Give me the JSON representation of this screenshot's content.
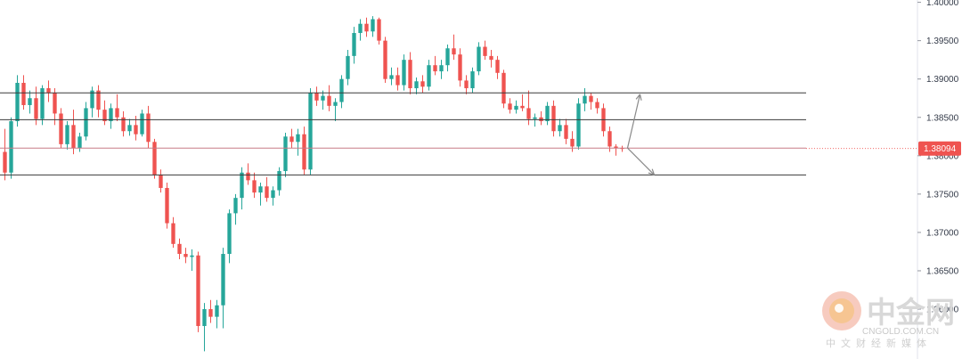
{
  "chart_data": {
    "type": "candlestick",
    "y_axis": {
      "ylim": [
        1.3535,
        1.4003
      ],
      "ticks": [
        "1.40000",
        "1.39500",
        "1.39000",
        "1.38500",
        "1.38000",
        "1.37500",
        "1.37000",
        "1.36500",
        "1.36000"
      ],
      "tick_values": [
        1.4,
        1.395,
        1.39,
        1.385,
        1.38,
        1.375,
        1.37,
        1.365,
        1.36
      ]
    },
    "current_price": {
      "label": "1.38094",
      "value": 1.38094,
      "color": "#ef5350"
    },
    "horizontal_levels": [
      1.3882,
      1.3847,
      1.381,
      1.3775
    ],
    "colors": {
      "up": "#26a69a",
      "down": "#ef5350",
      "level_line": "#3a3a3a",
      "arrow": "#8a8a8a"
    },
    "forecast_arrows": [
      {
        "from": 1.381,
        "to": 1.388
      },
      {
        "from": 1.381,
        "to": 1.3775
      }
    ],
    "candles": [
      [
        1.3805,
        1.3835,
        1.3768,
        1.3778
      ],
      [
        1.3778,
        1.385,
        1.377,
        1.3845
      ],
      [
        1.3845,
        1.3905,
        1.3838,
        1.3895
      ],
      [
        1.3895,
        1.3905,
        1.386,
        1.3866
      ],
      [
        1.3866,
        1.3885,
        1.3855,
        1.3875
      ],
      [
        1.3875,
        1.389,
        1.384,
        1.3848
      ],
      [
        1.3848,
        1.3892,
        1.384,
        1.3888
      ],
      [
        1.3888,
        1.3898,
        1.387,
        1.3882
      ],
      [
        1.3882,
        1.3888,
        1.384,
        1.3855
      ],
      [
        1.3855,
        1.3862,
        1.381,
        1.3815
      ],
      [
        1.3815,
        1.3845,
        1.3808,
        1.384
      ],
      [
        1.384,
        1.386,
        1.3802,
        1.381
      ],
      [
        1.381,
        1.383,
        1.3805,
        1.3825
      ],
      [
        1.3825,
        1.387,
        1.382,
        1.3862
      ],
      [
        1.3862,
        1.389,
        1.385,
        1.3885
      ],
      [
        1.3885,
        1.3892,
        1.385,
        1.386
      ],
      [
        1.386,
        1.3872,
        1.384,
        1.3845
      ],
      [
        1.3845,
        1.3868,
        1.3835,
        1.3862
      ],
      [
        1.3862,
        1.388,
        1.3845,
        1.385
      ],
      [
        1.385,
        1.3858,
        1.3825,
        1.3832
      ],
      [
        1.3832,
        1.3848,
        1.3826,
        1.384
      ],
      [
        1.384,
        1.3852,
        1.382,
        1.3828
      ],
      [
        1.3828,
        1.386,
        1.3825,
        1.3855
      ],
      [
        1.3855,
        1.3865,
        1.381,
        1.3818
      ],
      [
        1.3818,
        1.3822,
        1.377,
        1.3775
      ],
      [
        1.3775,
        1.3782,
        1.3752,
        1.3758
      ],
      [
        1.3758,
        1.3765,
        1.3705,
        1.3712
      ],
      [
        1.3712,
        1.372,
        1.368,
        1.3685
      ],
      [
        1.3685,
        1.3692,
        1.3665,
        1.3672
      ],
      [
        1.3672,
        1.368,
        1.366,
        1.3668
      ],
      [
        1.3668,
        1.3678,
        1.365,
        1.367
      ],
      [
        1.367,
        1.3675,
        1.357,
        1.3578
      ],
      [
        1.3578,
        1.3608,
        1.3545,
        1.36
      ],
      [
        1.36,
        1.3612,
        1.3582,
        1.359
      ],
      [
        1.359,
        1.3612,
        1.3575,
        1.3605
      ],
      [
        1.3605,
        1.368,
        1.3575,
        1.3672
      ],
      [
        1.3672,
        1.373,
        1.366,
        1.3725
      ],
      [
        1.3725,
        1.375,
        1.371,
        1.3745
      ],
      [
        1.3745,
        1.3785,
        1.373,
        1.3778
      ],
      [
        1.3778,
        1.379,
        1.3762,
        1.3768
      ],
      [
        1.3768,
        1.3778,
        1.3745,
        1.3752
      ],
      [
        1.3752,
        1.3765,
        1.3735,
        1.376
      ],
      [
        1.376,
        1.3772,
        1.374,
        1.3745
      ],
      [
        1.3745,
        1.376,
        1.3735,
        1.3755
      ],
      [
        1.3755,
        1.3785,
        1.3748,
        1.378
      ],
      [
        1.378,
        1.383,
        1.3772,
        1.3825
      ],
      [
        1.3825,
        1.3835,
        1.381,
        1.3818
      ],
      [
        1.3818,
        1.3835,
        1.38,
        1.3828
      ],
      [
        1.3828,
        1.3838,
        1.3775,
        1.3782
      ],
      [
        1.3782,
        1.3888,
        1.3775,
        1.3882
      ],
      [
        1.3882,
        1.389,
        1.3865,
        1.3872
      ],
      [
        1.3872,
        1.3885,
        1.386,
        1.3878
      ],
      [
        1.3878,
        1.3892,
        1.3858,
        1.3865
      ],
      [
        1.3865,
        1.3875,
        1.3845,
        1.387
      ],
      [
        1.387,
        1.3905,
        1.3862,
        1.39
      ],
      [
        1.39,
        1.3938,
        1.3892,
        1.393
      ],
      [
        1.393,
        1.3968,
        1.392,
        1.396
      ],
      [
        1.396,
        1.3978,
        1.395,
        1.3972
      ],
      [
        1.3972,
        1.398,
        1.3955,
        1.3962
      ],
      [
        1.3962,
        1.3982,
        1.3955,
        1.3978
      ],
      [
        1.3978,
        1.398,
        1.3945,
        1.395
      ],
      [
        1.395,
        1.3955,
        1.3895,
        1.39
      ],
      [
        1.39,
        1.3915,
        1.3892,
        1.3905
      ],
      [
        1.3905,
        1.3915,
        1.3885,
        1.3892
      ],
      [
        1.3892,
        1.3932,
        1.3885,
        1.3925
      ],
      [
        1.3925,
        1.3935,
        1.388,
        1.3888
      ],
      [
        1.3888,
        1.3902,
        1.388,
        1.3897
      ],
      [
        1.3897,
        1.3905,
        1.3882,
        1.389
      ],
      [
        1.389,
        1.3925,
        1.3885,
        1.3918
      ],
      [
        1.3918,
        1.393,
        1.3905,
        1.391
      ],
      [
        1.391,
        1.3925,
        1.39,
        1.3918
      ],
      [
        1.3918,
        1.3945,
        1.391,
        1.394
      ],
      [
        1.394,
        1.3958,
        1.3925,
        1.3932
      ],
      [
        1.3932,
        1.394,
        1.389,
        1.3898
      ],
      [
        1.3898,
        1.3905,
        1.388,
        1.3888
      ],
      [
        1.3888,
        1.3915,
        1.3882,
        1.391
      ],
      [
        1.391,
        1.3948,
        1.3905,
        1.3942
      ],
      [
        1.3942,
        1.395,
        1.3925,
        1.393
      ],
      [
        1.393,
        1.3938,
        1.3915,
        1.3925
      ],
      [
        1.3925,
        1.393,
        1.39,
        1.3908
      ],
      [
        1.3908,
        1.3912,
        1.3862,
        1.3868
      ],
      [
        1.3868,
        1.3875,
        1.3855,
        1.386
      ],
      [
        1.386,
        1.3872,
        1.3855,
        1.3865
      ],
      [
        1.3865,
        1.388,
        1.3858,
        1.3862
      ],
      [
        1.3862,
        1.3885,
        1.384,
        1.3848
      ],
      [
        1.3848,
        1.3855,
        1.3838,
        1.385
      ],
      [
        1.385,
        1.3858,
        1.384,
        1.3845
      ],
      [
        1.3845,
        1.387,
        1.384,
        1.3865
      ],
      [
        1.3865,
        1.3872,
        1.3825,
        1.3832
      ],
      [
        1.3832,
        1.3848,
        1.3825,
        1.384
      ],
      [
        1.384,
        1.3848,
        1.3815,
        1.3822
      ],
      [
        1.3822,
        1.3832,
        1.3805,
        1.3812
      ],
      [
        1.3812,
        1.3875,
        1.3808,
        1.3868
      ],
      [
        1.3868,
        1.3888,
        1.3858,
        1.3878
      ],
      [
        1.3878,
        1.3882,
        1.386,
        1.387
      ],
      [
        1.387,
        1.3875,
        1.3855,
        1.3862
      ],
      [
        1.3862,
        1.3868,
        1.3825,
        1.3832
      ],
      [
        1.3832,
        1.3838,
        1.3805,
        1.3812
      ],
      [
        1.3812,
        1.3815,
        1.38,
        1.381
      ],
      [
        1.381,
        1.3813,
        1.3805,
        1.3809
      ]
    ]
  },
  "watermark": {
    "name_cn": "中金网",
    "name_en": "CNGOLD.COM.CN",
    "tagline_cn": "中文财经新媒体",
    "logo_colors": [
      "#f0a08a",
      "#f6c27a"
    ]
  }
}
